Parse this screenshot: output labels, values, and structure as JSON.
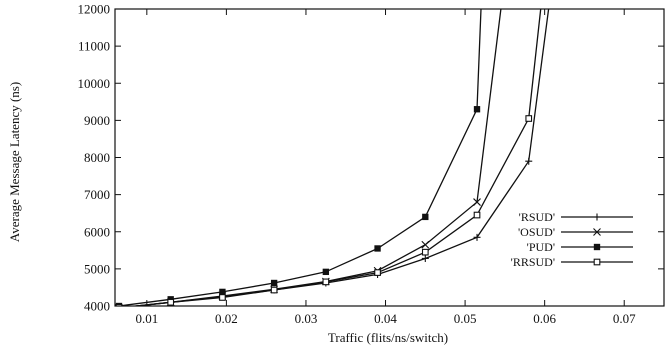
{
  "chart_data": {
    "type": "line",
    "title": "",
    "xlabel": "Traffic (flits/ns/switch)",
    "ylabel": "Average Message Latency (ns)",
    "xlim": [
      0.006,
      0.075
    ],
    "ylim": [
      4000,
      12000
    ],
    "xticks": [
      0.01,
      0.02,
      0.03,
      0.04,
      0.05,
      0.06,
      0.07
    ],
    "xtick_labels": [
      "0.01",
      "0.02",
      "0.03",
      "0.04",
      "0.05",
      "0.06",
      "0.07"
    ],
    "yticks": [
      4000,
      5000,
      6000,
      7000,
      8000,
      9000,
      10000,
      11000,
      12000
    ],
    "ytick_labels": [
      "4000",
      "5000",
      "6000",
      "7000",
      "8000",
      "9000",
      "10000",
      "11000",
      "12000"
    ],
    "grid": false,
    "legend_position": "right",
    "series": [
      {
        "name": "'RSUD'",
        "marker": "plus",
        "points": [
          [
            0.0065,
            3950
          ],
          [
            0.013,
            4100
          ],
          [
            0.0195,
            4250
          ],
          [
            0.026,
            4430
          ],
          [
            0.0325,
            4620
          ],
          [
            0.039,
            4850
          ],
          [
            0.045,
            5280
          ],
          [
            0.0515,
            5850
          ],
          [
            0.058,
            7900
          ],
          [
            0.0605,
            12000
          ]
        ]
      },
      {
        "name": "'OSUD'",
        "marker": "x",
        "points": [
          [
            0.0065,
            3950
          ],
          [
            0.013,
            4100
          ],
          [
            0.0195,
            4270
          ],
          [
            0.026,
            4450
          ],
          [
            0.0325,
            4660
          ],
          [
            0.039,
            4950
          ],
          [
            0.045,
            5650
          ],
          [
            0.0515,
            6800
          ],
          [
            0.0545,
            12000
          ]
        ]
      },
      {
        "name": "'PUD'",
        "marker": "square-filled",
        "points": [
          [
            0.0065,
            4000
          ],
          [
            0.013,
            4180
          ],
          [
            0.0195,
            4380
          ],
          [
            0.026,
            4620
          ],
          [
            0.0325,
            4920
          ],
          [
            0.039,
            5550
          ],
          [
            0.045,
            6400
          ],
          [
            0.0515,
            9300
          ],
          [
            0.052,
            12000
          ]
        ]
      },
      {
        "name": "'RRSUD'",
        "marker": "square-open",
        "points": [
          [
            0.0065,
            3950
          ],
          [
            0.013,
            4100
          ],
          [
            0.0195,
            4230
          ],
          [
            0.026,
            4430
          ],
          [
            0.0325,
            4650
          ],
          [
            0.039,
            4900
          ],
          [
            0.045,
            5450
          ],
          [
            0.0515,
            6450
          ],
          [
            0.058,
            9050
          ],
          [
            0.0595,
            12000
          ]
        ]
      }
    ]
  }
}
